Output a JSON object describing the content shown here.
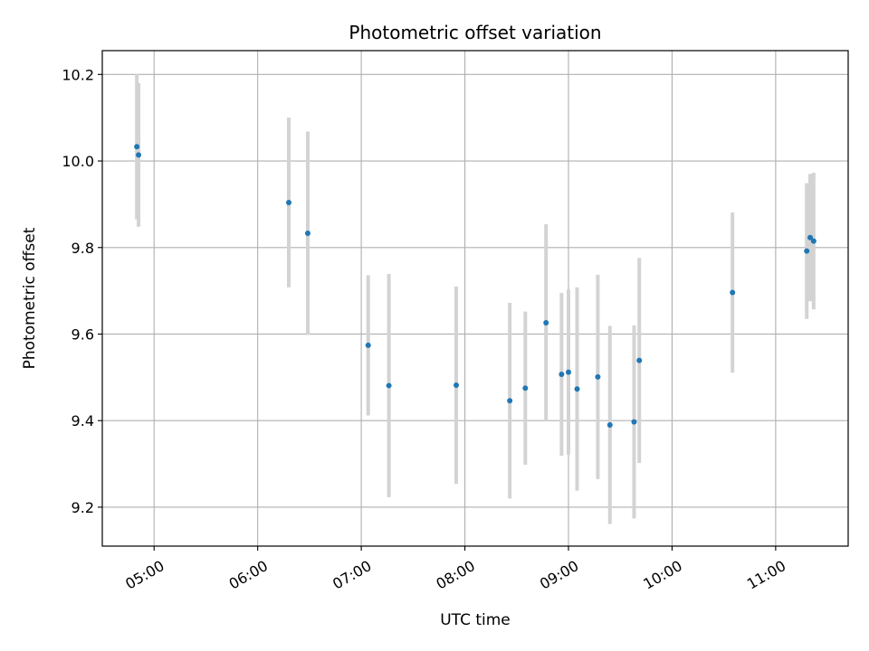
{
  "chart_data": {
    "type": "scatter",
    "title": "Photometric offset variation",
    "xlabel": "UTC time",
    "ylabel": "Photometric offset",
    "xlim": [
      "04:30",
      "11:42"
    ],
    "ylim": [
      9.11,
      10.255
    ],
    "x_ticks": [
      "05:00",
      "06:00",
      "07:00",
      "08:00",
      "09:00",
      "10:00",
      "11:00"
    ],
    "y_ticks": [
      9.2,
      9.4,
      9.6,
      9.8,
      10.0,
      10.2
    ],
    "grid": true,
    "marker_color": "#1f77b4",
    "errorbar_color": "#d3d3d3",
    "points": [
      {
        "x": "04:50",
        "y": 10.033,
        "yerr": 0.168
      },
      {
        "x": "04:51",
        "y": 10.014,
        "yerr": 0.166
      },
      {
        "x": "06:18",
        "y": 9.904,
        "yerr": 0.196
      },
      {
        "x": "06:29",
        "y": 9.833,
        "yerr": 0.235
      },
      {
        "x": "07:04",
        "y": 9.574,
        "yerr": 0.162
      },
      {
        "x": "07:16",
        "y": 9.481,
        "yerr": 0.258
      },
      {
        "x": "07:55",
        "y": 9.482,
        "yerr": 0.228
      },
      {
        "x": "08:26",
        "y": 9.446,
        "yerr": 0.226
      },
      {
        "x": "08:35",
        "y": 9.475,
        "yerr": 0.177
      },
      {
        "x": "08:47",
        "y": 9.626,
        "yerr": 0.228
      },
      {
        "x": "08:56",
        "y": 9.507,
        "yerr": 0.188
      },
      {
        "x": "09:00",
        "y": 9.512,
        "yerr": 0.191
      },
      {
        "x": "09:05",
        "y": 9.473,
        "yerr": 0.235
      },
      {
        "x": "09:17",
        "y": 9.501,
        "yerr": 0.236
      },
      {
        "x": "09:24",
        "y": 9.39,
        "yerr": 0.229
      },
      {
        "x": "09:38",
        "y": 9.397,
        "yerr": 0.223
      },
      {
        "x": "09:41",
        "y": 9.539,
        "yerr": 0.237
      },
      {
        "x": "10:35",
        "y": 9.696,
        "yerr": 0.185
      },
      {
        "x": "11:18",
        "y": 9.792,
        "yerr": 0.157
      },
      {
        "x": "11:20",
        "y": 9.823,
        "yerr": 0.147
      },
      {
        "x": "11:22",
        "y": 9.815,
        "yerr": 0.158
      }
    ]
  }
}
